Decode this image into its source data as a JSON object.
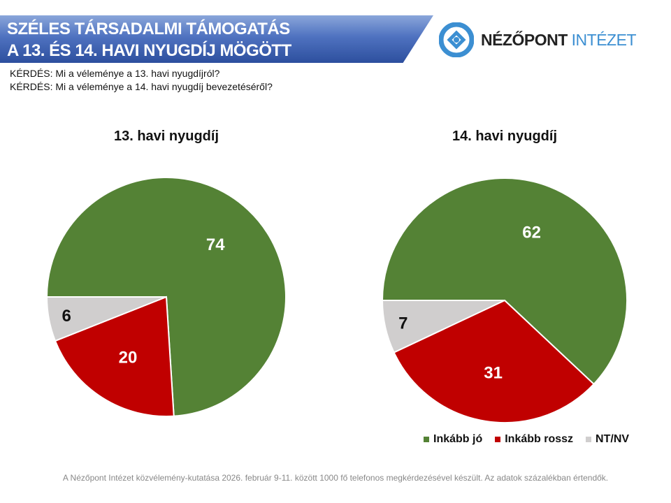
{
  "header": {
    "title_line1": "SZÉLES TÁRSADALMI TÁMOGATÁS",
    "title_line2": "A 13. ÉS 14. HAVI NYUGDÍJ MÖGÖTT",
    "logo_main": "NÉZŐPONT",
    "logo_accent": "INTÉZET"
  },
  "questions": [
    "KÉRDÉS: Mi a véleménye a 13. havi nyugdíjról?",
    "KÉRDÉS: Mi a véleménye a 14. havi nyugdíj bevezetéséről?"
  ],
  "colors": {
    "Inkább jó": "#548235",
    "Inkább rossz": "#c00000",
    "NT/NV": "#d0cece"
  },
  "chart_data": [
    {
      "type": "pie",
      "title": "13. havi nyugdíj",
      "labels": [
        "Inkább jó",
        "Inkább rossz",
        "NT/NV"
      ],
      "values": [
        74,
        20,
        6
      ]
    },
    {
      "type": "pie",
      "title": "14. havi nyugdíj",
      "labels": [
        "Inkább jó",
        "Inkább rossz",
        "NT/NV"
      ],
      "values": [
        62,
        31,
        7
      ]
    }
  ],
  "legend": [
    "Inkább jó",
    "Inkább rossz",
    "NT/NV"
  ],
  "footer": "A Nézőpont Intézet közvélemény-kutatása 2026. február 9-11. között 1000 fő telefonos megkérdezésével készült. Az adatok százalékban értendők."
}
